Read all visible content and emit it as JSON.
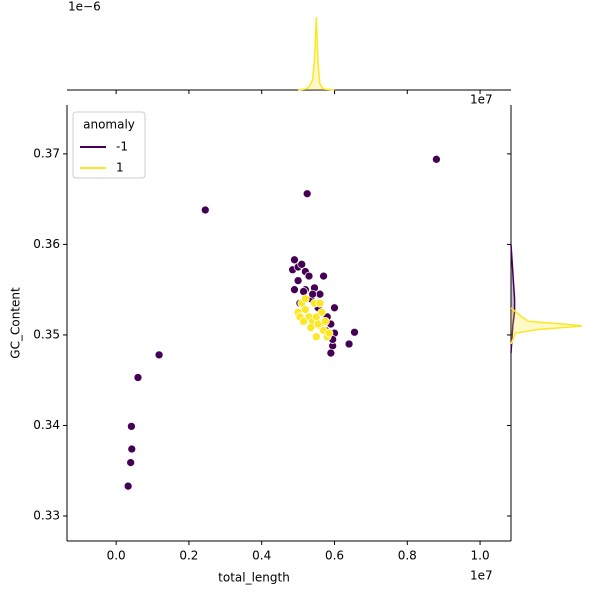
{
  "chart_data": {
    "type": "scatter",
    "xlabel": "total_length",
    "ylabel": "GC_Content",
    "x_offset_label": "1e7",
    "top_offset_label": "1e−6",
    "xlim": [
      -0.135,
      1.085
    ],
    "ylim": [
      0.32724,
      0.3754
    ],
    "xticks": [
      {
        "value": 0,
        "label": "0.0"
      },
      {
        "value": 0.2,
        "label": "0.2"
      },
      {
        "value": 0.4,
        "label": "0.4"
      },
      {
        "value": 0.6,
        "label": "0.6"
      },
      {
        "value": 0.8,
        "label": "0.8"
      },
      {
        "value": 1,
        "label": "1.0"
      }
    ],
    "yticks": [
      0.33,
      0.34,
      0.35,
      0.36,
      0.37
    ],
    "legend_title": "anomaly",
    "legend_position": "upper left",
    "series": [
      {
        "name": "-1",
        "color": "#440154",
        "x": [
          0.88,
          0.525,
          0.245,
          0.118,
          0.06,
          0.042,
          0.043,
          0.04,
          0.033,
          0.655,
          0.64,
          0.595,
          0.59,
          0.49,
          0.485,
          0.5,
          0.51,
          0.52,
          0.53,
          0.5,
          0.52,
          0.545,
          0.56,
          0.57,
          0.49,
          0.505,
          0.535,
          0.555,
          0.58,
          0.59,
          0.6,
          0.595,
          0.575,
          0.54,
          0.515,
          0.6
        ],
        "values": [
          0.3694,
          0.3656,
          0.3638,
          0.3478,
          0.3453,
          0.3399,
          0.3374,
          0.3359,
          0.3333,
          0.3503,
          0.349,
          0.3488,
          0.348,
          0.3583,
          0.3572,
          0.3575,
          0.3578,
          0.357,
          0.3565,
          0.356,
          0.355,
          0.3552,
          0.3545,
          0.3565,
          0.355,
          0.3535,
          0.354,
          0.353,
          0.352,
          0.3512,
          0.3502,
          0.3495,
          0.3505,
          0.3545,
          0.3548,
          0.353
        ]
      },
      {
        "name": "1",
        "color": "#fde725",
        "x": [
          0.5,
          0.51,
          0.52,
          0.53,
          0.54,
          0.55,
          0.56,
          0.57,
          0.58,
          0.52,
          0.545,
          0.555,
          0.565,
          0.575,
          0.505,
          0.535,
          0.585,
          0.55,
          0.515,
          0.56
        ],
        "values": [
          0.3525,
          0.3535,
          0.3528,
          0.352,
          0.3515,
          0.352,
          0.351,
          0.3505,
          0.3498,
          0.354,
          0.3535,
          0.3512,
          0.3525,
          0.3515,
          0.352,
          0.3508,
          0.3502,
          0.3498,
          0.3515,
          0.3535
        ]
      }
    ],
    "top_kde": {
      "ylim": [
        0,
        8.9
      ],
      "series": [
        {
          "color": "#fde725",
          "x": [
            0.5,
            0.52,
            0.53,
            0.54,
            0.545,
            0.55,
            0.555,
            0.56,
            0.57,
            0.6
          ],
          "values": [
            0,
            0.1,
            0.3,
            1,
            3,
            7.2,
            2.5,
            0.6,
            0.1,
            0
          ]
        }
      ]
    },
    "right_kde": {
      "xlim": [
        0,
        100
      ],
      "series": [
        {
          "color": "#440154",
          "y": [
            0.348,
            0.351,
            0.3525,
            0.354,
            0.3555,
            0.357,
            0.36
          ],
          "values": [
            0,
            2,
            4,
            4,
            3,
            2,
            0
          ]
        },
        {
          "color": "#fde725",
          "y": [
            0.349,
            0.3502,
            0.3506,
            0.3509,
            0.351,
            0.3512,
            0.3515,
            0.352,
            0.3525,
            0.353
          ],
          "values": [
            0,
            5,
            30,
            70,
            80,
            60,
            20,
            12,
            6,
            0
          ]
        }
      ]
    }
  }
}
